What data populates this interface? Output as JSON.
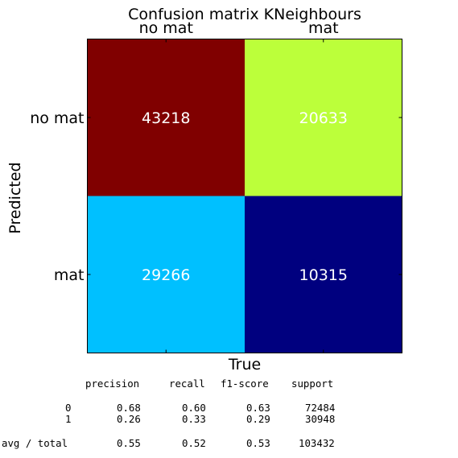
{
  "chart_data": {
    "type": "heatmap",
    "title": "Confusion matrix KNeighbours",
    "xlabel": "True",
    "ylabel": "Predicted",
    "x_categories": [
      "no mat",
      "mat"
    ],
    "y_categories": [
      "no mat",
      "mat"
    ],
    "values": [
      [
        43218,
        20633
      ],
      [
        29266,
        10315
      ]
    ],
    "cell_colors": [
      [
        "#800000",
        "#bcff3a"
      ],
      [
        "#00c0ff",
        "#00007f"
      ]
    ],
    "x_tick_position": "top",
    "grid": false
  },
  "report": {
    "headers": [
      "precision",
      "recall",
      "f1-score",
      "support"
    ],
    "rows": [
      {
        "label": "0",
        "values": [
          "0.68",
          "0.60",
          "0.63",
          "72484"
        ]
      },
      {
        "label": "1",
        "values": [
          "0.26",
          "0.33",
          "0.29",
          "30948"
        ]
      },
      {
        "label": "avg / total",
        "values": [
          "0.55",
          "0.52",
          "0.53",
          "103432"
        ]
      }
    ]
  }
}
